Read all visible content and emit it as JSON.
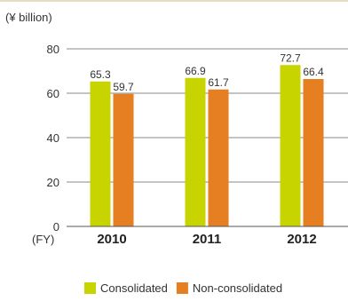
{
  "chart_data": {
    "type": "bar",
    "unit_label": "(¥ billion)",
    "x_axis_prefix": "(FY)",
    "categories": [
      "2010",
      "2011",
      "2012"
    ],
    "series": [
      {
        "name": "Consolidated",
        "values": [
          65.3,
          66.9,
          72.7
        ],
        "color": "#c8d400",
        "labels": [
          "65.3",
          "66.9",
          "72.7"
        ]
      },
      {
        "name": "Non-consolidated",
        "values": [
          59.7,
          61.7,
          66.4
        ],
        "color": "#e67e22",
        "labels": [
          "59.7",
          "61.7",
          "66.4"
        ]
      }
    ],
    "ylim": [
      0,
      80
    ],
    "yticks": [
      0,
      20,
      40,
      60,
      80
    ],
    "ytick_labels": [
      "0",
      "20",
      "40",
      "60",
      "80"
    ],
    "grid": true,
    "legend_position": "bottom"
  }
}
